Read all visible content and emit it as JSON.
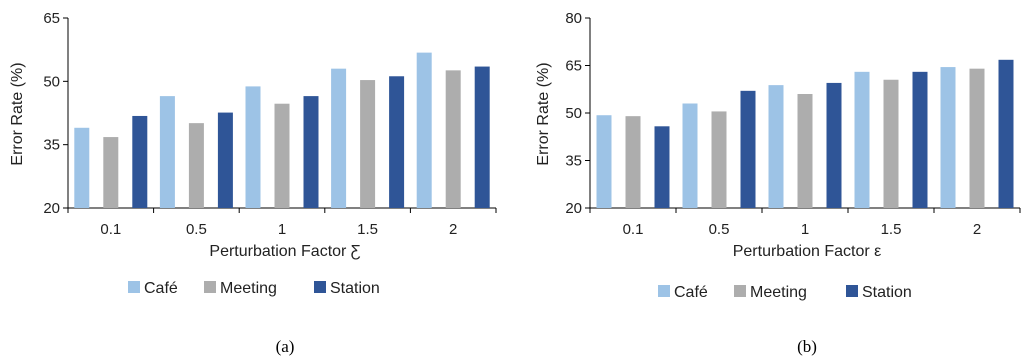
{
  "colors": {
    "Café": "#9dc3e6",
    "Meeting": "#adadad",
    "Station": "#2f5597"
  },
  "chart_data": [
    {
      "type": "bar",
      "caption": "(a)",
      "xlabel": "Perturbation Factor Ƹ",
      "ylabel": "Error Rate (%)",
      "categories": [
        "0.1",
        "0.5",
        "1",
        "1.5",
        "2"
      ],
      "ylim": [
        20,
        65
      ],
      "yticks": [
        20,
        35,
        50,
        65
      ],
      "legend_position": "bottom",
      "grid": false,
      "series": [
        {
          "name": "Café",
          "values": [
            39.0,
            46.5,
            48.8,
            53.0,
            56.8
          ]
        },
        {
          "name": "Meeting",
          "values": [
            36.8,
            40.1,
            44.7,
            50.3,
            52.6
          ]
        },
        {
          "name": "Station",
          "values": [
            41.8,
            42.6,
            46.5,
            51.2,
            53.5
          ]
        }
      ]
    },
    {
      "type": "bar",
      "caption": "(b)",
      "xlabel": "Perturbation Factor ε",
      "ylabel": "Error Rate (%)",
      "categories": [
        "0.1",
        "0.5",
        "1",
        "1.5",
        "2"
      ],
      "ylim": [
        20,
        80
      ],
      "yticks": [
        20,
        35,
        50,
        65,
        80
      ],
      "legend_position": "bottom",
      "grid": false,
      "series": [
        {
          "name": "Café",
          "values": [
            49.3,
            53.0,
            58.8,
            63.0,
            64.5
          ]
        },
        {
          "name": "Meeting",
          "values": [
            49.0,
            50.5,
            56.0,
            60.5,
            64.0
          ]
        },
        {
          "name": "Station",
          "values": [
            45.8,
            57.0,
            59.5,
            63.0,
            66.8
          ]
        }
      ]
    }
  ]
}
